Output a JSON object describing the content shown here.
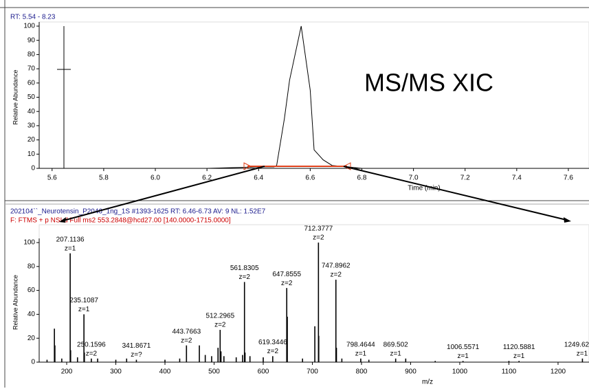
{
  "chart_data": [
    {
      "type": "line",
      "title": "RT: 5.54 - 8.23",
      "annotation": "MS/MS XIC",
      "ylabel": "Relative Abundance",
      "xlabel": "Time (min)",
      "color": "#000000",
      "x": [
        5.9,
        6.0,
        6.2,
        6.4,
        6.46,
        6.47,
        6.5,
        6.52,
        6.565,
        6.6,
        6.615,
        6.65,
        6.685,
        6.75,
        6.8
      ],
      "values": [
        0,
        0,
        0,
        1,
        1,
        2,
        35,
        62,
        100,
        55,
        13,
        6,
        2,
        1,
        0
      ],
      "xlim": [
        5.55,
        7.68
      ],
      "ylim": [
        0,
        100
      ],
      "xticks": [
        5.6,
        5.8,
        {
          "value": 6,
          "label": "6.0"
        },
        6.2,
        6.4,
        6.6,
        6.8,
        {
          "value": 7,
          "label": "7.0"
        },
        7.2,
        7.4,
        7.6
      ],
      "yticks": [
        0,
        10,
        20,
        30,
        40,
        50,
        60,
        70,
        80,
        90,
        100
      ]
    },
    {
      "type": "bar",
      "title": "202104``_Neurotensin_P2046_1ng_1S #1393-1625  RT: 6.46-6.73  AV: 9  NL: 1.52E7",
      "subtitle": "F: FTMS + p NSI d Full ms2 553.2848@hcd27.00 [140.0000-1715.0000]",
      "title_color": "#1a1a8c",
      "subtitle_color": "#cc0000",
      "ylabel": "Relative Abundance",
      "xlabel": "m/z",
      "color": "#000000",
      "series": [
        {
          "x": [
            207.1136,
            235.1087,
            250.1596,
            341.8671,
            443.7663,
            512.2965,
            561.8305,
            619.3446,
            647.8555,
            712.3777,
            747.8962,
            798.4644,
            869.502,
            1006.5571,
            1120.5881,
            1249.62
          ],
          "values": [
            91,
            40,
            3,
            2,
            14,
            27,
            67,
            5,
            62,
            100,
            69,
            3,
            3,
            1,
            1,
            3
          ],
          "charges": [
            "z=1",
            "z=1",
            "z=2",
            "z=?",
            "z=2",
            "z=2",
            "z=2",
            "z=2",
            "z=2",
            "z=2",
            "z=2",
            "z=1",
            "z=1",
            "z=1",
            "z=1",
            "z=1"
          ]
        },
        {
          "x": [
            160,
            175,
            176,
            190,
            208,
            222,
            236,
            263,
            300,
            322,
            400,
            430,
            470,
            482,
            495,
            508,
            514,
            520,
            545,
            558,
            563,
            573,
            600,
            649,
            680,
            705,
            713,
            749,
            760,
            815,
            890,
            950,
            1100
          ],
          "values": [
            2,
            28,
            14,
            3,
            10,
            4,
            8,
            3,
            2,
            3,
            2,
            3,
            14,
            6,
            5,
            12,
            9,
            5,
            4,
            6,
            8,
            5,
            4,
            38,
            3,
            30,
            22,
            12,
            3,
            2,
            3,
            1,
            1
          ]
        }
      ],
      "xlim": [
        144,
        1263
      ],
      "ylim": [
        0,
        100
      ],
      "xticks": [
        200,
        300,
        400,
        500,
        600,
        700,
        800,
        900,
        1000,
        1100,
        1200
      ],
      "yticks": [
        0,
        20,
        40,
        60,
        80,
        100
      ]
    }
  ]
}
